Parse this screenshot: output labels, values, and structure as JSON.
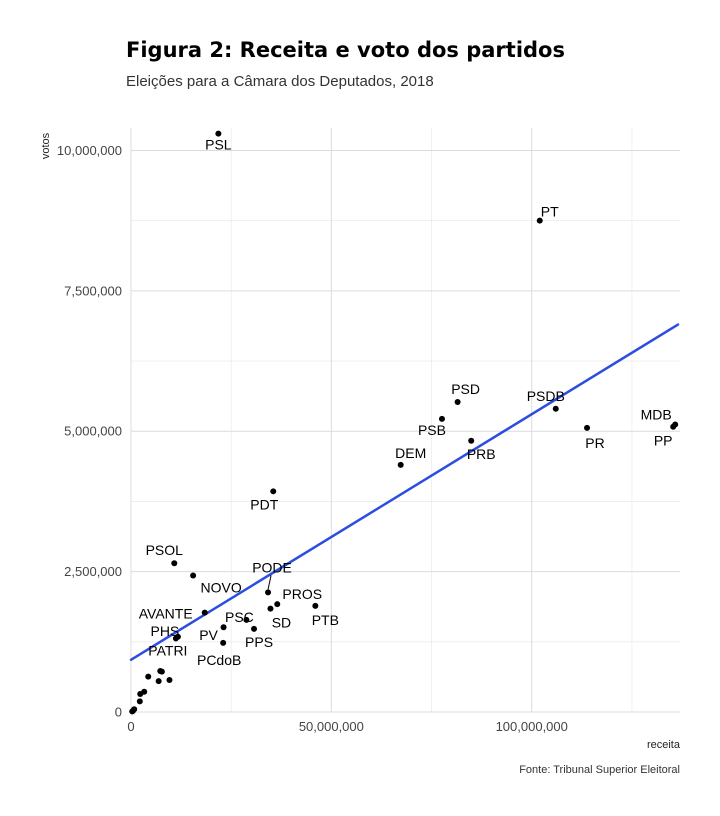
{
  "title": "Figura 2: Receita e voto dos partidos",
  "subtitle": "Eleições para a Câmara dos Deputados, 2018",
  "caption": "Fonte: Tribunal Superior Eleitoral",
  "chart_data": {
    "type": "scatter",
    "xlabel": "receita",
    "ylabel": "votos",
    "xlim": [
      0,
      137000000
    ],
    "ylim": [
      0,
      10400000
    ],
    "x_ticks": [
      0,
      50000000,
      100000000
    ],
    "x_tick_labels": [
      "0",
      "50,000,000",
      "100,000,000"
    ],
    "y_ticks": [
      0,
      2500000,
      5000000,
      7500000,
      10000000
    ],
    "y_tick_labels": [
      "0",
      "2,500,000",
      "5,000,000",
      "7,500,000",
      "10,000,000"
    ],
    "grid": true,
    "point_color": "#000000",
    "trend_color": "#2b4de0",
    "trend_line": {
      "x": [
        0,
        136500000
      ],
      "y": [
        930000,
        6900000
      ]
    },
    "points": [
      {
        "x": 21800000,
        "y": 10300000,
        "label": "PSL"
      },
      {
        "x": 102000000,
        "y": 8750000,
        "label": "PT"
      },
      {
        "x": 81500000,
        "y": 5520000,
        "label": "PSD"
      },
      {
        "x": 106000000,
        "y": 5400000,
        "label": "PSDB"
      },
      {
        "x": 77600000,
        "y": 5220000,
        "label": "PSB"
      },
      {
        "x": 113800000,
        "y": 5060000,
        "label": "PR"
      },
      {
        "x": 135800000,
        "y": 5120000,
        "label": "MDB"
      },
      {
        "x": 135300000,
        "y": 5080000,
        "label": "PP"
      },
      {
        "x": 84900000,
        "y": 4830000,
        "label": "PRB"
      },
      {
        "x": 67300000,
        "y": 4400000,
        "label": "DEM"
      },
      {
        "x": 35500000,
        "y": 3930000,
        "label": "PDT"
      },
      {
        "x": 10800000,
        "y": 2650000,
        "label": "PSOL"
      },
      {
        "x": 15500000,
        "y": 2430000,
        "label": "NOVO"
      },
      {
        "x": 34200000,
        "y": 2130000,
        "label": "PODE"
      },
      {
        "x": 18400000,
        "y": 1770000,
        "label": "AVANTE"
      },
      {
        "x": 36500000,
        "y": 1920000,
        "label": "PROS"
      },
      {
        "x": 46000000,
        "y": 1890000,
        "label": "PTB"
      },
      {
        "x": 28800000,
        "y": 1640000,
        "label": "PSC"
      },
      {
        "x": 34800000,
        "y": 1840000,
        "label": "SD"
      },
      {
        "x": 11700000,
        "y": 1340000,
        "label": "PHS"
      },
      {
        "x": 23100000,
        "y": 1510000,
        "label": "PV"
      },
      {
        "x": 30700000,
        "y": 1480000,
        "label": "PPS"
      },
      {
        "x": 11200000,
        "y": 1310000,
        "label": "PATRI"
      },
      {
        "x": 23000000,
        "y": 1230000,
        "label": "PCdoB"
      },
      {
        "x": 4300000,
        "y": 630000,
        "label": ""
      },
      {
        "x": 7300000,
        "y": 730000,
        "label": ""
      },
      {
        "x": 7700000,
        "y": 720000,
        "label": ""
      },
      {
        "x": 6900000,
        "y": 550000,
        "label": ""
      },
      {
        "x": 9600000,
        "y": 570000,
        "label": ""
      },
      {
        "x": 2300000,
        "y": 320000,
        "label": ""
      },
      {
        "x": 3300000,
        "y": 360000,
        "label": ""
      },
      {
        "x": 2200000,
        "y": 190000,
        "label": ""
      },
      {
        "x": 800000,
        "y": 50000,
        "label": ""
      },
      {
        "x": 500000,
        "y": 20000,
        "label": ""
      },
      {
        "x": 300000,
        "y": 10000,
        "label": ""
      }
    ]
  }
}
